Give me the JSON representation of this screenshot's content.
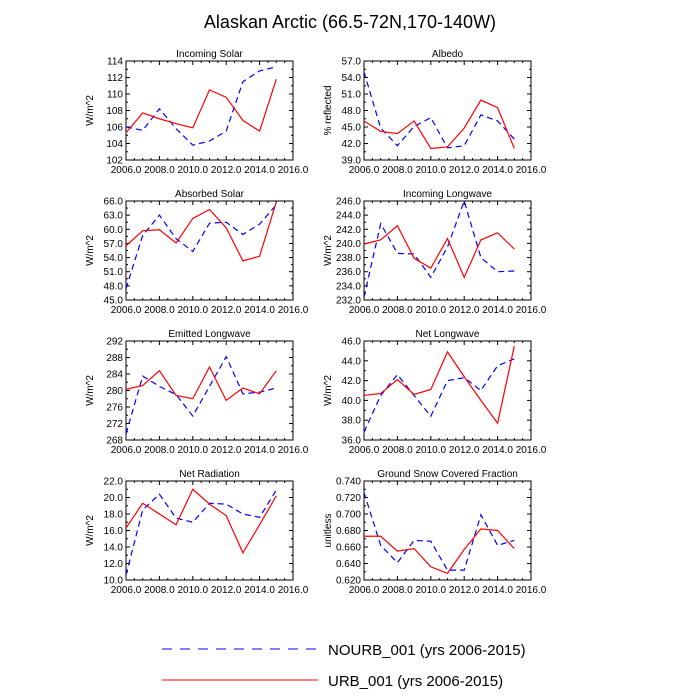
{
  "figure": {
    "title": "Alaskan Arctic (66.5-72N,170-140W)"
  },
  "legend": {
    "placement": "bottom-center",
    "entries": [
      {
        "label": "NOURB_001 (yrs 2006-2015)",
        "color": "#0000ff",
        "style": "dashed"
      },
      {
        "label": "URB_001 (yrs 2006-2015)",
        "color": "#ff0000",
        "style": "solid"
      }
    ]
  },
  "chart_data": [
    {
      "type": "line",
      "title": "Incoming Solar",
      "xlabel": "",
      "ylabel": "W/m^2",
      "xlim": [
        2006,
        2016
      ],
      "ylim": [
        102,
        114
      ],
      "xticks": [
        "2006.0",
        "2008.0",
        "2010.0",
        "2012.0",
        "2014.0",
        "2016.0"
      ],
      "yticks": [
        "102",
        "104",
        "106",
        "108",
        "110",
        "112",
        "114"
      ],
      "x": [
        2006,
        2007,
        2008,
        2009,
        2010,
        2011,
        2012,
        2013,
        2014,
        2015
      ],
      "series": [
        {
          "name": "NOURB_001 (yrs 2006-2015)",
          "values": [
            106.0,
            105.6,
            108.2,
            105.8,
            103.8,
            104.3,
            105.5,
            111.5,
            112.8,
            113.3
          ]
        },
        {
          "name": "URB_001 (yrs 2006-2015)",
          "values": [
            105.3,
            107.7,
            107.0,
            106.4,
            105.9,
            110.5,
            109.6,
            106.8,
            105.5,
            111.8
          ]
        }
      ]
    },
    {
      "type": "line",
      "title": "Albedo",
      "xlabel": "",
      "ylabel": "% reflected",
      "xlim": [
        2006,
        2016
      ],
      "ylim": [
        39,
        57
      ],
      "xticks": [
        "2006.0",
        "2008.0",
        "2010.0",
        "2012.0",
        "2014.0",
        "2016.0"
      ],
      "yticks": [
        "39.0",
        "42.0",
        "45.0",
        "48.0",
        "51.0",
        "54.0",
        "57.0"
      ],
      "x": [
        2006,
        2007,
        2008,
        2009,
        2010,
        2011,
        2012,
        2013,
        2014,
        2015
      ],
      "series": [
        {
          "name": "NOURB_001 (yrs 2006-2015)",
          "values": [
            55.0,
            44.8,
            41.6,
            45.1,
            46.7,
            41.2,
            41.6,
            47.2,
            46.1,
            42.8
          ]
        },
        {
          "name": "URB_001 (yrs 2006-2015)",
          "values": [
            46.1,
            44.2,
            43.8,
            46.1,
            41.1,
            41.4,
            44.8,
            49.9,
            48.5,
            41.1
          ]
        }
      ]
    },
    {
      "type": "line",
      "title": "Absorbed Solar",
      "xlabel": "",
      "ylabel": "W/m^2",
      "xlim": [
        2006,
        2016
      ],
      "ylim": [
        45,
        66
      ],
      "xticks": [
        "2006.0",
        "2008.0",
        "2010.0",
        "2012.0",
        "2014.0",
        "2016.0"
      ],
      "yticks": [
        "45.0",
        "48.0",
        "51.0",
        "54.0",
        "57.0",
        "60.0",
        "63.0",
        "66.0"
      ],
      "x": [
        2006,
        2007,
        2008,
        2009,
        2010,
        2011,
        2012,
        2013,
        2014,
        2015
      ],
      "series": [
        {
          "name": "NOURB_001 (yrs 2006-2015)",
          "values": [
            47.4,
            58.7,
            63.0,
            58.0,
            55.3,
            61.3,
            61.5,
            58.9,
            61.1,
            65.2
          ]
        },
        {
          "name": "URB_001 (yrs 2006-2015)",
          "values": [
            56.5,
            59.7,
            59.9,
            57.1,
            62.3,
            64.2,
            60.3,
            53.3,
            54.3,
            65.8
          ]
        }
      ]
    },
    {
      "type": "line",
      "title": "Incoming Longwave",
      "xlabel": "",
      "ylabel": "W/m^2",
      "xlim": [
        2006,
        2016
      ],
      "ylim": [
        232,
        246
      ],
      "xticks": [
        "2006.0",
        "2008.0",
        "2010.0",
        "2012.0",
        "2014.0",
        "2016.0"
      ],
      "yticks": [
        "232.0",
        "234.0",
        "236.0",
        "238.0",
        "240.0",
        "242.0",
        "244.0",
        "246.0"
      ],
      "x": [
        2006,
        2007,
        2008,
        2009,
        2010,
        2011,
        2012,
        2013,
        2014,
        2015
      ],
      "series": [
        {
          "name": "NOURB_001 (yrs 2006-2015)",
          "values": [
            232.4,
            242.8,
            238.6,
            238.5,
            235.2,
            239.5,
            246.0,
            238.0,
            236.0,
            236.1
          ]
        },
        {
          "name": "URB_001 (yrs 2006-2015)",
          "values": [
            239.9,
            240.5,
            242.5,
            237.9,
            236.5,
            240.7,
            235.2,
            240.5,
            241.5,
            239.2
          ]
        }
      ]
    },
    {
      "type": "line",
      "title": "Emitted Longwave",
      "xlabel": "",
      "ylabel": "W/m^2",
      "xlim": [
        2006,
        2016
      ],
      "ylim": [
        268,
        292
      ],
      "xticks": [
        "2006.0",
        "2008.0",
        "2010.0",
        "2012.0",
        "2014.0",
        "2016.0"
      ],
      "yticks": [
        "268",
        "272",
        "276",
        "280",
        "284",
        "288",
        "292"
      ],
      "x": [
        2006,
        2007,
        2008,
        2009,
        2010,
        2011,
        2012,
        2013,
        2014,
        2015
      ],
      "series": [
        {
          "name": "NOURB_001 (yrs 2006-2015)",
          "values": [
            269.5,
            283.5,
            281.0,
            279.0,
            273.8,
            281.0,
            288.2,
            279.2,
            279.6,
            280.6
          ]
        },
        {
          "name": "URB_001 (yrs 2006-2015)",
          "values": [
            280.3,
            281.2,
            284.8,
            278.8,
            278.0,
            285.7,
            277.6,
            280.6,
            279.2,
            284.8
          ]
        }
      ]
    },
    {
      "type": "line",
      "title": "Net Longwave",
      "xlabel": "",
      "ylabel": "W/m^2",
      "xlim": [
        2006,
        2016
      ],
      "ylim": [
        36,
        46
      ],
      "xticks": [
        "2006.0",
        "2008.0",
        "2010.0",
        "2012.0",
        "2014.0",
        "2016.0"
      ],
      "yticks": [
        "36.0",
        "38.0",
        "40.0",
        "42.0",
        "44.0",
        "46.0"
      ],
      "x": [
        2006,
        2007,
        2008,
        2009,
        2010,
        2011,
        2012,
        2013,
        2014,
        2015
      ],
      "series": [
        {
          "name": "NOURB_001 (yrs 2006-2015)",
          "values": [
            36.8,
            40.5,
            42.6,
            40.5,
            38.4,
            42.0,
            42.3,
            41.0,
            43.5,
            44.2
          ]
        },
        {
          "name": "URB_001 (yrs 2006-2015)",
          "values": [
            40.5,
            40.7,
            42.1,
            40.6,
            41.1,
            44.9,
            42.4,
            40.0,
            37.7,
            45.5
          ]
        }
      ]
    },
    {
      "type": "line",
      "title": "Net Radiation",
      "xlabel": "",
      "ylabel": "W/m^2",
      "xlim": [
        2006,
        2016
      ],
      "ylim": [
        10,
        22
      ],
      "xticks": [
        "2006.0",
        "2008.0",
        "2010.0",
        "2012.0",
        "2014.0",
        "2016.0"
      ],
      "yticks": [
        "10.0",
        "12.0",
        "14.0",
        "16.0",
        "18.0",
        "20.0",
        "22.0"
      ],
      "x": [
        2006,
        2007,
        2008,
        2009,
        2010,
        2011,
        2012,
        2013,
        2014,
        2015
      ],
      "series": [
        {
          "name": "NOURB_001 (yrs 2006-2015)",
          "values": [
            10.6,
            18.5,
            20.4,
            17.5,
            17.0,
            19.3,
            19.2,
            18.0,
            17.6,
            20.9
          ]
        },
        {
          "name": "URB_001 (yrs 2006-2015)",
          "values": [
            16.3,
            19.3,
            18.0,
            16.7,
            21.0,
            19.2,
            17.8,
            13.3,
            16.7,
            20.2
          ]
        }
      ]
    },
    {
      "type": "line",
      "title": "Ground Snow Covered Fraction",
      "xlabel": "",
      "ylabel": "unitless",
      "xlim": [
        2006,
        2016
      ],
      "ylim": [
        0.62,
        0.74
      ],
      "xticks": [
        "2006.0",
        "2008.0",
        "2010.0",
        "2012.0",
        "2014.0",
        "2016.0"
      ],
      "yticks": [
        "0.620",
        "0.640",
        "0.660",
        "0.680",
        "0.700",
        "0.720",
        "0.740"
      ],
      "x": [
        2006,
        2007,
        2008,
        2009,
        2010,
        2011,
        2012,
        2013,
        2014,
        2015
      ],
      "series": [
        {
          "name": "NOURB_001 (yrs 2006-2015)",
          "values": [
            0.726,
            0.662,
            0.641,
            0.668,
            0.667,
            0.632,
            0.632,
            0.699,
            0.662,
            0.668
          ]
        },
        {
          "name": "URB_001 (yrs 2006-2015)",
          "values": [
            0.673,
            0.673,
            0.655,
            0.658,
            0.636,
            0.628,
            0.657,
            0.682,
            0.68,
            0.658
          ]
        }
      ]
    }
  ]
}
